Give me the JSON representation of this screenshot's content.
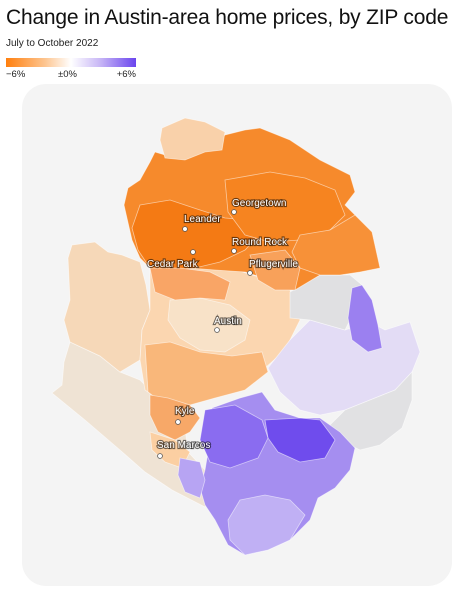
{
  "header": {
    "title": "Change in Austin-area home prices, by ZIP code",
    "subtitle": "July to October 2022"
  },
  "legend": {
    "min_label": "−6%",
    "mid_label": "±0%",
    "max_label": "+6%",
    "colors": {
      "negative": "#ff7f0e",
      "neutral": "#ffffff",
      "positive": "#6a45ee"
    }
  },
  "map": {
    "background_color": "#f4f4f4",
    "cities": [
      {
        "name": "Georgetown"
      },
      {
        "name": "Leander"
      },
      {
        "name": "Round Rock"
      },
      {
        "name": "Cedar Park"
      },
      {
        "name": "Pflugerville"
      },
      {
        "name": "Austin"
      },
      {
        "name": "Kyle"
      },
      {
        "name": "San Marcos"
      }
    ]
  }
}
